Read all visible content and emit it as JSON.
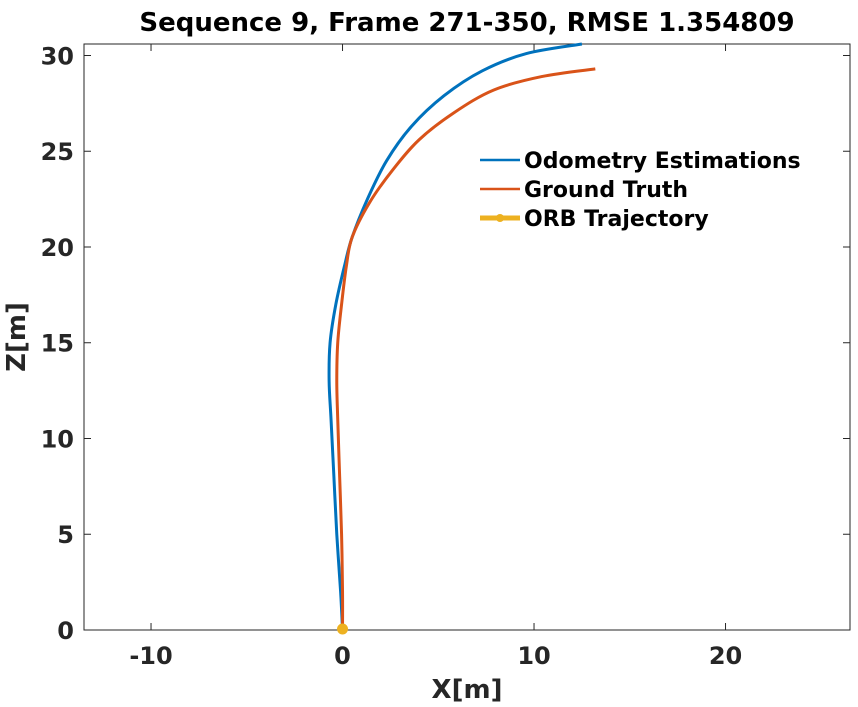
{
  "chart_data": {
    "type": "line",
    "title": "Sequence 9, Frame 271-350, RMSE 1.354809",
    "xlabel": "X[m]",
    "ylabel": "Z[m]",
    "xlim": [
      -13.5,
      26.5
    ],
    "ylim": [
      0,
      30.6
    ],
    "xticks": [
      -10,
      0,
      10,
      20
    ],
    "yticks": [
      0,
      5,
      10,
      15,
      20,
      25,
      30
    ],
    "grid": false,
    "legend_position": "top-right",
    "series": [
      {
        "name": "Odometry Estimations",
        "color": "#0072BD",
        "points": [
          [
            0,
            0
          ],
          [
            -0.1,
            2
          ],
          [
            -0.3,
            5
          ],
          [
            -0.45,
            8
          ],
          [
            -0.6,
            11
          ],
          [
            -0.7,
            13
          ],
          [
            -0.65,
            15
          ],
          [
            -0.35,
            17
          ],
          [
            0.1,
            19
          ],
          [
            0.5,
            20.5
          ],
          [
            1.3,
            22.5
          ],
          [
            2.3,
            24.5
          ],
          [
            3.6,
            26.3
          ],
          [
            5.3,
            27.9
          ],
          [
            7.3,
            29.2
          ],
          [
            9.6,
            30.1
          ],
          [
            12.5,
            30.6
          ]
        ]
      },
      {
        "name": "Ground Truth",
        "color": "#D95319",
        "points": [
          [
            0,
            0
          ],
          [
            0,
            2
          ],
          [
            -0.05,
            5
          ],
          [
            -0.15,
            8
          ],
          [
            -0.25,
            11
          ],
          [
            -0.3,
            13
          ],
          [
            -0.25,
            15
          ],
          [
            -0.05,
            17
          ],
          [
            0.2,
            19
          ],
          [
            0.5,
            20.5
          ],
          [
            1.4,
            22.3
          ],
          [
            2.6,
            24.0
          ],
          [
            4.0,
            25.6
          ],
          [
            5.8,
            27.0
          ],
          [
            7.9,
            28.2
          ],
          [
            10.4,
            28.9
          ],
          [
            13.2,
            29.3
          ]
        ]
      },
      {
        "name": "ORB Trajectory",
        "color": "#EDB120",
        "points": [
          [
            0,
            0.05
          ]
        ]
      }
    ]
  }
}
